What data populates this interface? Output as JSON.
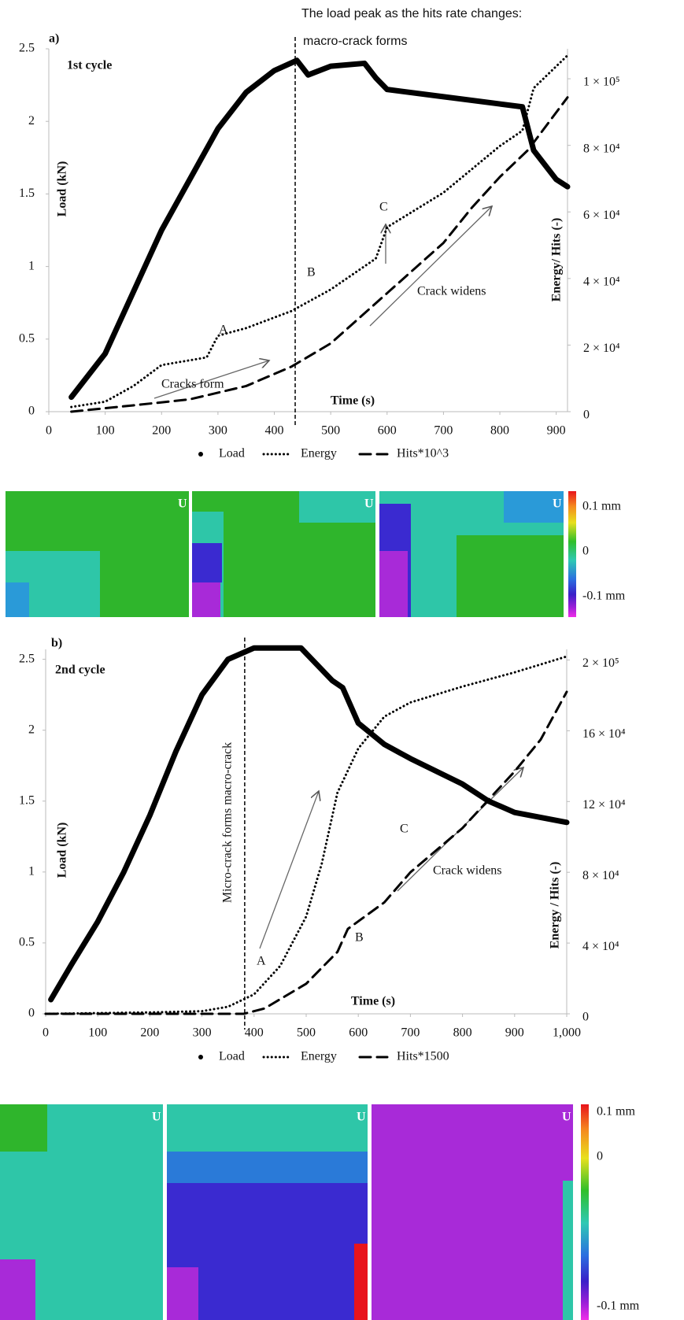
{
  "caption": "The load peak as the hits rate changes:",
  "chart_data": [
    {
      "type": "line",
      "label": "a)",
      "title": "1st cycle",
      "xlabel": "Time (s)",
      "ylabel": "Load (kN)",
      "y2label": "Energy/ Hits (-)",
      "xlim": [
        0,
        920
      ],
      "xticks": [
        0,
        100,
        200,
        300,
        400,
        500,
        600,
        700,
        800,
        900
      ],
      "ylim": [
        0,
        2.5
      ],
      "yticks": [
        0,
        0.5,
        1,
        1.5,
        2,
        2.5
      ],
      "y2lim": [
        0,
        109000
      ],
      "y2ticks": [
        0,
        {
          "value": 20000,
          "label": "2 × 10⁴"
        },
        {
          "value": 40000,
          "label": "4 × 10⁴"
        },
        {
          "value": 60000,
          "label": "6 × 10⁴"
        },
        {
          "value": 80000,
          "label": "8 × 10⁴"
        },
        {
          "value": 100000,
          "label": "1 × 10⁵"
        }
      ],
      "marker_x": 437,
      "annotations": [
        "macro-crack forms",
        "A",
        "B",
        "C",
        "Cracks form",
        "Crack widens"
      ],
      "series": [
        {
          "name": "Load",
          "color": "#000000",
          "style": "markers",
          "axis": "y",
          "x": [
            40,
            100,
            200,
            300,
            350,
            400,
            440,
            460,
            500,
            560,
            580,
            600,
            700,
            800,
            840,
            860,
            900,
            920
          ],
          "values": [
            0.1,
            0.4,
            1.25,
            1.95,
            2.2,
            2.35,
            2.42,
            2.32,
            2.38,
            2.4,
            2.3,
            2.22,
            2.17,
            2.12,
            2.1,
            1.8,
            1.6,
            1.55
          ]
        },
        {
          "name": "Energy",
          "color": "#000000",
          "style": "dotted",
          "axis": "y2",
          "x": [
            40,
            100,
            150,
            200,
            280,
            300,
            350,
            430,
            500,
            580,
            600,
            700,
            800,
            840,
            860,
            920
          ],
          "values": [
            1400,
            3000,
            7700,
            14000,
            16300,
            22800,
            25100,
            30200,
            36700,
            46000,
            55400,
            65800,
            79800,
            84400,
            97200,
            107000
          ]
        },
        {
          "name": "Hits*10^3",
          "color": "#000000",
          "style": "dashed",
          "axis": "y2",
          "x": [
            40,
            150,
            250,
            350,
            430,
            500,
            600,
            700,
            750,
            800,
            850,
            920
          ],
          "values": [
            0,
            1900,
            3700,
            7700,
            13500,
            20500,
            35600,
            50700,
            61200,
            70500,
            78600,
            94400
          ]
        }
      ]
    },
    {
      "type": "line",
      "label": "b)",
      "title": "2nd cycle",
      "xlabel": "Time (s)",
      "ylabel": "Load (kN)",
      "y2label": "Energy / Hits (-)",
      "xlim": [
        0,
        1000
      ],
      "xticks": [
        0,
        100,
        200,
        300,
        400,
        500,
        600,
        700,
        800,
        900,
        {
          "value": 1000,
          "label": "1,000"
        }
      ],
      "ylim": [
        0,
        2.57
      ],
      "yticks": [
        0,
        0.5,
        1,
        1.5,
        2,
        2.5
      ],
      "y2lim": [
        0,
        206000
      ],
      "y2ticks": [
        0,
        {
          "value": 40000,
          "label": "4 × 10⁴"
        },
        {
          "value": 80000,
          "label": "8 × 10⁴"
        },
        {
          "value": 120000,
          "label": "12 × 10⁴"
        },
        {
          "value": 160000,
          "label": "16 × 10⁴"
        },
        {
          "value": 200000,
          "label": "2 × 10⁵"
        }
      ],
      "marker_x": 382,
      "annotations": [
        "Micro-crack forms macro-crack",
        "A",
        "B",
        "C",
        "Crack widens"
      ],
      "series": [
        {
          "name": "Load",
          "color": "#000000",
          "style": "markers",
          "axis": "y",
          "x": [
            10,
            50,
            100,
            150,
            200,
            250,
            300,
            350,
            400,
            490,
            550,
            570,
            600,
            650,
            700,
            800,
            850,
            900,
            1000
          ],
          "values": [
            0.1,
            0.35,
            0.65,
            1.0,
            1.4,
            1.85,
            2.25,
            2.5,
            2.58,
            2.58,
            2.35,
            2.3,
            2.05,
            1.9,
            1.8,
            1.62,
            1.5,
            1.42,
            1.35
          ]
        },
        {
          "name": "Energy",
          "color": "#000000",
          "style": "dotted",
          "axis": "y2",
          "x": [
            0,
            200,
            300,
            350,
            400,
            450,
            500,
            530,
            560,
            600,
            650,
            700,
            800,
            900,
            1000
          ],
          "values": [
            0,
            800,
            1500,
            4000,
            11000,
            27000,
            55000,
            85000,
            125000,
            150000,
            168000,
            176000,
            185000,
            193000,
            202000
          ]
        },
        {
          "name": "Hits*1500",
          "color": "#000000",
          "style": "dashed",
          "axis": "y2",
          "x": [
            0,
            380,
            420,
            500,
            560,
            580,
            650,
            700,
            800,
            900,
            950,
            1000
          ],
          "values": [
            0,
            0,
            3000,
            17000,
            35000,
            48000,
            63000,
            80000,
            105000,
            137000,
            155000,
            182000
          ]
        }
      ]
    }
  ],
  "maps": [
    {
      "images": [
        "U",
        "U",
        "U"
      ],
      "colorbar": [
        "0.1 mm",
        "0",
        "-0.1 mm"
      ]
    },
    {
      "images": [
        "U",
        "U",
        "U"
      ],
      "colorbar": [
        "0.1 mm",
        "0",
        "-0.1 mm"
      ]
    }
  ]
}
